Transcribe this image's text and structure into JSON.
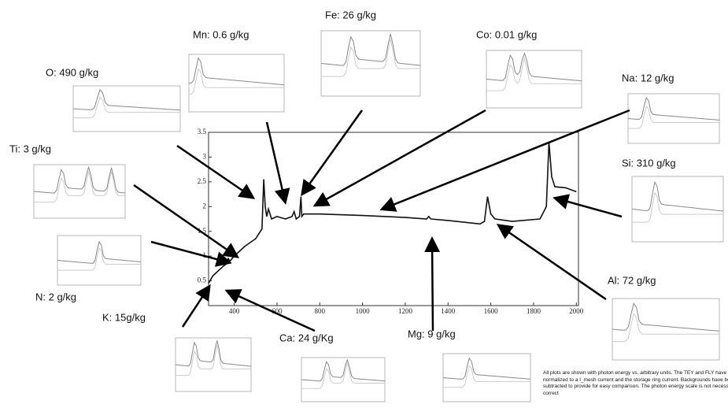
{
  "chart_data": {
    "type": "line",
    "x": [
      280,
      300,
      350,
      365,
      372,
      380,
      400,
      450,
      500,
      530,
      538,
      545,
      552,
      560,
      575,
      600,
      640,
      670,
      680,
      690,
      705,
      712,
      716,
      725,
      760,
      800,
      1000,
      1200,
      1300,
      1310,
      1320,
      1400,
      1550,
      1570,
      1585,
      1600,
      1620,
      1700,
      1830,
      1860,
      1872,
      1885,
      1900,
      1950,
      2000
    ],
    "values": [
      0.45,
      0.6,
      0.8,
      0.85,
      0.95,
      0.9,
      1.0,
      1.2,
      1.35,
      1.55,
      2.55,
      2.0,
      1.8,
      1.95,
      1.75,
      1.8,
      1.75,
      1.8,
      1.9,
      1.75,
      1.8,
      2.2,
      1.8,
      1.85,
      1.85,
      1.85,
      1.82,
      1.78,
      1.75,
      1.8,
      1.75,
      1.72,
      1.65,
      1.7,
      2.2,
      1.85,
      1.75,
      1.7,
      1.75,
      2.0,
      3.3,
      2.6,
      2.4,
      2.38,
      2.3
    ],
    "color": "#111111",
    "xlim": [
      280,
      2010
    ],
    "ylim": [
      0,
      3.5
    ],
    "xticks": [
      400,
      600,
      800,
      1000,
      1200,
      1400,
      1600,
      1800,
      2000
    ],
    "yticks": [
      0.5,
      1,
      1.5,
      2,
      2.5,
      3,
      3.5
    ],
    "annotations": [
      "O: 490 g/kg",
      "Mn: 0.6 g/kg",
      "Fe: 26 g/kg",
      "Co: 0.01 g/kg",
      "Na: 12 g/kg",
      "Si: 310 g/kg",
      "Ti: 3 g/kg",
      "N: 2 g/kg",
      "Al: 72 g/kg",
      "K: 15g/kg",
      "Ca: 24 g/Kg",
      "Mg: 9 g/kg"
    ],
    "note": "All plots are shown with photon energy vs. arbitrary units.  The TEY and FLY have been normalized to a I_mesh current and the storage ring current.  Backgrounds have been subtracted to provide for easy comparison.  The photon energy scale is not necessarily correct"
  }
}
